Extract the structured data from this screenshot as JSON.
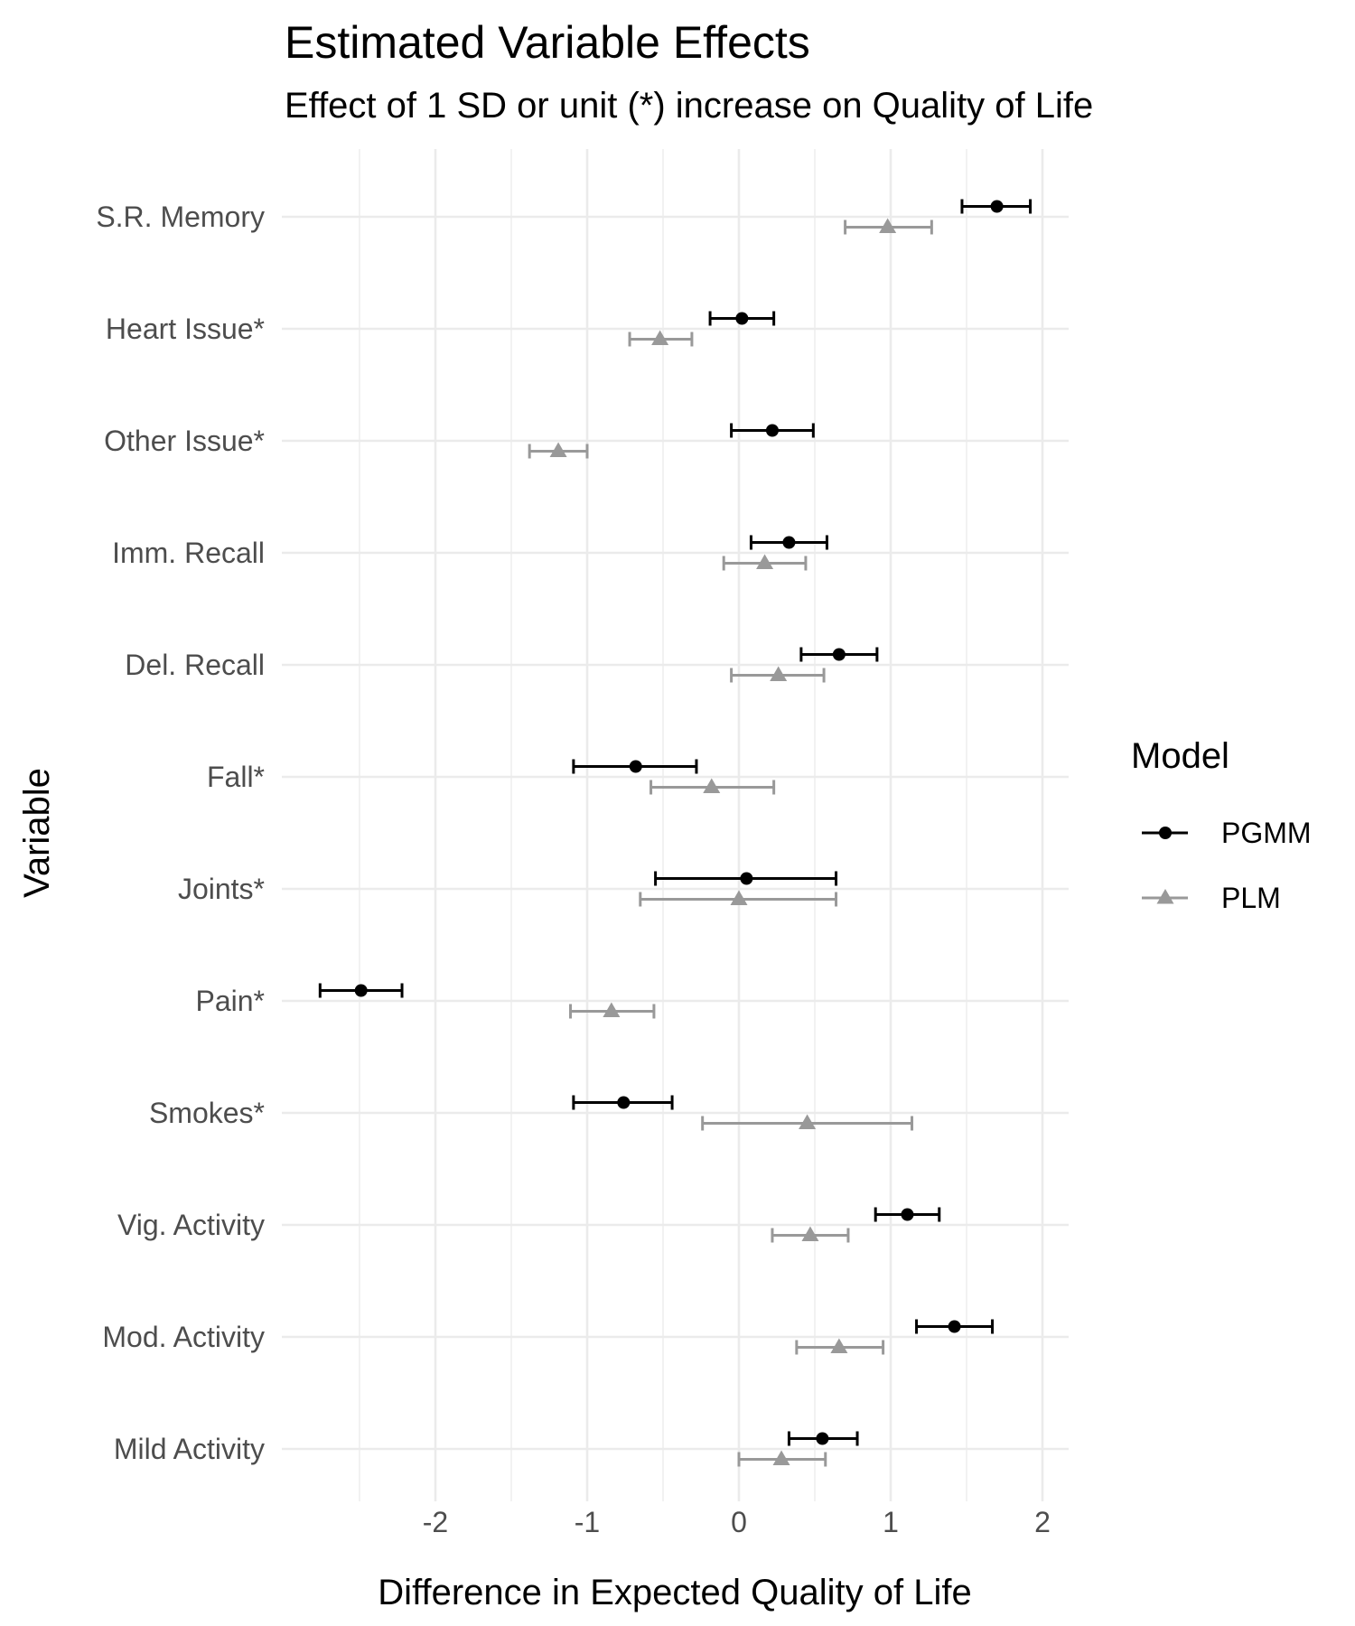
{
  "chart_data": {
    "type": "scatter",
    "title": "Estimated Variable Effects",
    "subtitle": "Effect of 1 SD or unit (*) increase on Quality of Life",
    "xlabel": "Difference in Expected Quality of Life",
    "ylabel": "Variable",
    "xlim": [
      -3.0,
      2.15
    ],
    "x_ticks": [
      -2,
      -1,
      0,
      1,
      2
    ],
    "x_tick_labels": [
      "-2",
      "-1",
      "0",
      "1",
      "2"
    ],
    "grid": true,
    "legend_title": "Model",
    "legend_position": "right",
    "categories": [
      "S.R. Memory",
      "Heart Issue*",
      "Other Issue*",
      "Imm. Recall",
      "Del. Recall",
      "Fall*",
      "Joints*",
      "Pain*",
      "Smokes*",
      "Vig. Activity",
      "Mod. Activity",
      "Mild Activity"
    ],
    "series": [
      {
        "name": "PGMM",
        "color": "#000000",
        "marker": "circle",
        "points": [
          {
            "estimate": 1.7,
            "lower": 1.47,
            "upper": 1.92
          },
          {
            "estimate": 0.02,
            "lower": -0.19,
            "upper": 0.23
          },
          {
            "estimate": 0.22,
            "lower": -0.05,
            "upper": 0.49
          },
          {
            "estimate": 0.33,
            "lower": 0.08,
            "upper": 0.58
          },
          {
            "estimate": 0.66,
            "lower": 0.41,
            "upper": 0.91
          },
          {
            "estimate": -0.68,
            "lower": -1.09,
            "upper": -0.28
          },
          {
            "estimate": 0.05,
            "lower": -0.55,
            "upper": 0.64
          },
          {
            "estimate": -2.49,
            "lower": -2.76,
            "upper": -2.22
          },
          {
            "estimate": -0.76,
            "lower": -1.09,
            "upper": -0.44
          },
          {
            "estimate": 1.11,
            "lower": 0.9,
            "upper": 1.32
          },
          {
            "estimate": 1.42,
            "lower": 1.17,
            "upper": 1.67
          },
          {
            "estimate": 0.55,
            "lower": 0.33,
            "upper": 0.78
          }
        ]
      },
      {
        "name": "PLM",
        "color": "#999999",
        "marker": "triangle",
        "points": [
          {
            "estimate": 0.98,
            "lower": 0.7,
            "upper": 1.27
          },
          {
            "estimate": -0.52,
            "lower": -0.72,
            "upper": -0.31
          },
          {
            "estimate": -1.19,
            "lower": -1.38,
            "upper": -1.0
          },
          {
            "estimate": 0.17,
            "lower": -0.1,
            "upper": 0.44
          },
          {
            "estimate": 0.26,
            "lower": -0.05,
            "upper": 0.56
          },
          {
            "estimate": -0.18,
            "lower": -0.58,
            "upper": 0.23
          },
          {
            "estimate": 0.0,
            "lower": -0.65,
            "upper": 0.64
          },
          {
            "estimate": -0.84,
            "lower": -1.11,
            "upper": -0.56
          },
          {
            "estimate": 0.45,
            "lower": -0.24,
            "upper": 1.14
          },
          {
            "estimate": 0.47,
            "lower": 0.22,
            "upper": 0.72
          },
          {
            "estimate": 0.66,
            "lower": 0.38,
            "upper": 0.95
          },
          {
            "estimate": 0.28,
            "lower": 0.0,
            "upper": 0.57
          }
        ]
      }
    ]
  }
}
